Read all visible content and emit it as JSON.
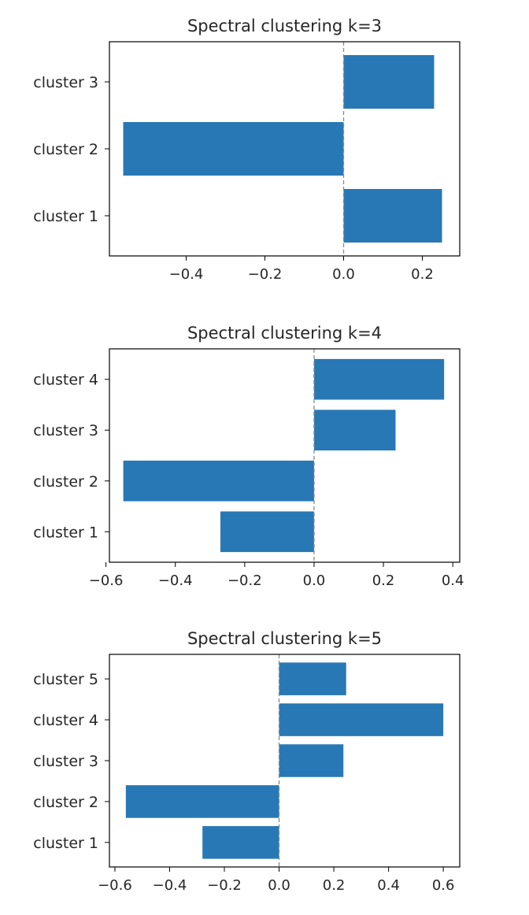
{
  "chart_data": [
    {
      "type": "bar",
      "orientation": "horizontal",
      "title": "Spectral clustering k=3",
      "categories": [
        "cluster 1",
        "cluster 2",
        "cluster 3"
      ],
      "values": [
        0.25,
        -0.56,
        0.23
      ],
      "xlim": [
        -0.595,
        0.295
      ],
      "xticks": [
        "−0.4",
        "−0.2",
        "0.0",
        "0.2"
      ],
      "xtick_values": [
        -0.4,
        -0.2,
        0.0,
        0.2
      ],
      "xlabel": "",
      "ylabel": "",
      "grid": false,
      "bar_color": "#2878b5",
      "zero_line": "dashed-gray"
    },
    {
      "type": "bar",
      "orientation": "horizontal",
      "title": "Spectral clustering k=4",
      "categories": [
        "cluster 1",
        "cluster 2",
        "cluster 3",
        "cluster 4"
      ],
      "values": [
        -0.27,
        -0.55,
        0.235,
        0.375
      ],
      "xlim": [
        -0.59,
        0.42
      ],
      "xticks": [
        "−0.6",
        "−0.4",
        "−0.2",
        "0.0",
        "0.2",
        "0.4"
      ],
      "xtick_values": [
        -0.6,
        -0.4,
        -0.2,
        0.0,
        0.2,
        0.4
      ],
      "xlabel": "",
      "ylabel": "",
      "grid": false,
      "bar_color": "#2878b5",
      "zero_line": "dashed-gray"
    },
    {
      "type": "bar",
      "orientation": "horizontal",
      "title": "Spectral clustering k=5",
      "categories": [
        "cluster 1",
        "cluster 2",
        "cluster 3",
        "cluster 4",
        "cluster 5"
      ],
      "values": [
        -0.28,
        -0.56,
        0.235,
        0.6,
        0.245
      ],
      "xlim": [
        -0.62,
        0.66
      ],
      "xticks": [
        "−0.6",
        "−0.4",
        "−0.2",
        "0.0",
        "0.2",
        "0.4",
        "0.6"
      ],
      "xtick_values": [
        -0.6,
        -0.4,
        -0.2,
        0.0,
        0.2,
        0.4,
        0.6
      ],
      "xlabel": "",
      "ylabel": "",
      "grid": false,
      "bar_color": "#2878b5",
      "zero_line": "dashed-gray"
    }
  ]
}
